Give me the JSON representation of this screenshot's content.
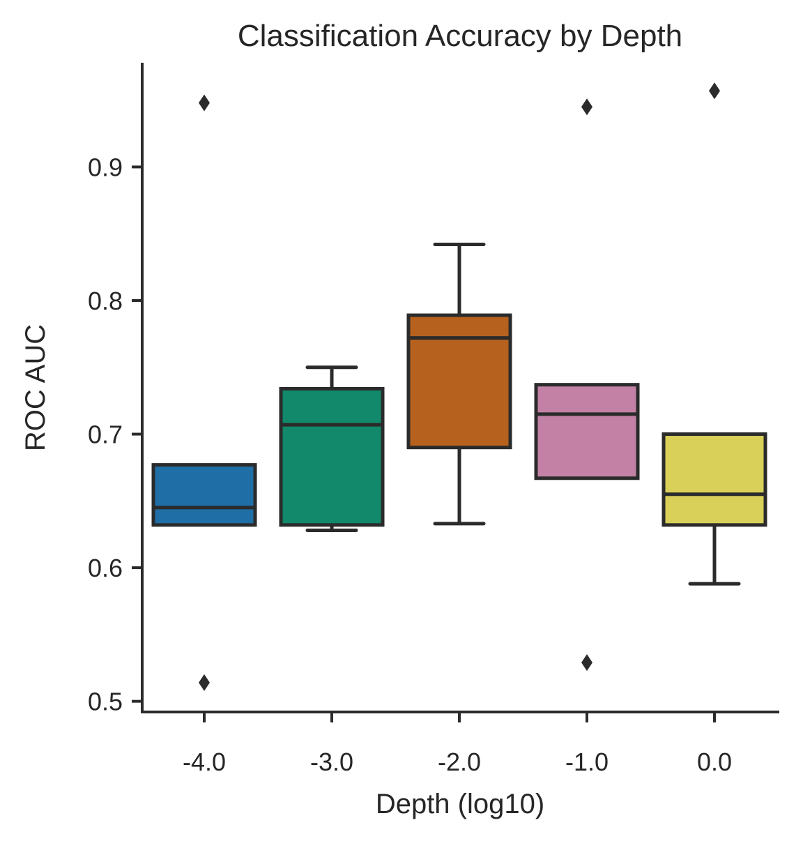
{
  "chart_data": {
    "type": "box",
    "title": "Classification Accuracy by Depth",
    "xlabel": "Depth (log10)",
    "ylabel": "ROC AUC",
    "ylim": [
      0.492,
      0.978
    ],
    "yticks": [
      "0.5",
      "0.6",
      "0.7",
      "0.8",
      "0.9"
    ],
    "grid": false,
    "categories": [
      "-4.0",
      "-3.0",
      "-2.0",
      "-1.0",
      "0.0"
    ],
    "boxes": [
      {
        "category": "-4.0",
        "color": "#1f6fa6",
        "whisker_low": 0.632,
        "q1": 0.632,
        "median": 0.645,
        "q3": 0.677,
        "whisker_high": 0.677,
        "outliers": [
          0.948,
          0.514
        ]
      },
      {
        "category": "-3.0",
        "color": "#12896a",
        "whisker_low": 0.628,
        "q1": 0.632,
        "median": 0.707,
        "q3": 0.734,
        "whisker_high": 0.75,
        "outliers": []
      },
      {
        "category": "-2.0",
        "color": "#b6621e",
        "whisker_low": 0.633,
        "q1": 0.69,
        "median": 0.772,
        "q3": 0.789,
        "whisker_high": 0.842,
        "outliers": []
      },
      {
        "category": "-1.0",
        "color": "#c281a5",
        "whisker_low": 0.667,
        "q1": 0.667,
        "median": 0.715,
        "q3": 0.737,
        "whisker_high": 0.737,
        "outliers": [
          0.945,
          0.529
        ]
      },
      {
        "category": "0.0",
        "color": "#d9d05a",
        "whisker_low": 0.588,
        "q1": 0.632,
        "median": 0.655,
        "q3": 0.7,
        "whisker_high": 0.7,
        "outliers": [
          0.957
        ]
      }
    ]
  }
}
